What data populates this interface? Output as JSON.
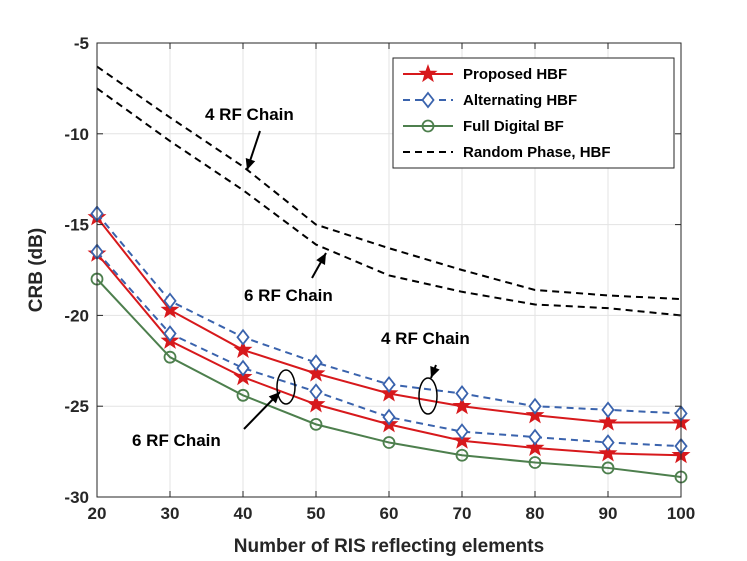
{
  "chart_data": {
    "type": "line",
    "title": "",
    "xlabel": "Number of RIS reflecting elements",
    "ylabel": "CRB (dB)",
    "xlim": [
      20,
      100
    ],
    "ylim": [
      -30,
      -5
    ],
    "xticks": [
      20,
      30,
      40,
      50,
      60,
      70,
      80,
      90,
      100
    ],
    "yticks": [
      -5,
      -10,
      -15,
      -20,
      -25,
      -30
    ],
    "grid": true,
    "legend_position": "top-right",
    "x": [
      20,
      30,
      40,
      50,
      60,
      70,
      80,
      90,
      100
    ],
    "series": [
      {
        "name": "Proposed HBF",
        "group": "4 RF Chain",
        "color": "#d7191c",
        "dash": "solid",
        "marker": "star",
        "legend": true,
        "values": [
          -14.6,
          -19.7,
          -21.9,
          -23.2,
          -24.3,
          -25.0,
          -25.5,
          -25.9,
          -25.9
        ]
      },
      {
        "name": "Proposed HBF",
        "group": "6 RF Chain",
        "color": "#d7191c",
        "dash": "solid",
        "marker": "star",
        "legend": false,
        "values": [
          -16.6,
          -21.4,
          -23.4,
          -24.9,
          -26.0,
          -26.9,
          -27.3,
          -27.6,
          -27.7
        ]
      },
      {
        "name": "Alternating HBF",
        "group": "4 RF Chain",
        "color": "#3a63ad",
        "dash": "dashed",
        "marker": "diamond",
        "legend": true,
        "values": [
          -14.4,
          -19.2,
          -21.2,
          -22.6,
          -23.8,
          -24.3,
          -25.0,
          -25.2,
          -25.4
        ]
      },
      {
        "name": "Alternating HBF",
        "group": "6 RF Chain",
        "color": "#3a63ad",
        "dash": "dashed",
        "marker": "diamond",
        "legend": false,
        "values": [
          -16.5,
          -21.0,
          -22.9,
          -24.2,
          -25.6,
          -26.4,
          -26.7,
          -27.0,
          -27.2
        ]
      },
      {
        "name": "Full Digital BF",
        "group": "",
        "color": "#4d7f4d",
        "dash": "solid",
        "marker": "circle",
        "legend": true,
        "values": [
          -18.0,
          -22.3,
          -24.4,
          -26.0,
          -27.0,
          -27.7,
          -28.1,
          -28.4,
          -28.9
        ]
      },
      {
        "name": "Random Phase, HBF",
        "group": "4 RF Chain",
        "color": "#000000",
        "dash": "dashed",
        "marker": "none",
        "legend": true,
        "values": [
          -6.3,
          -9.1,
          -11.8,
          -15.0,
          -16.3,
          -17.5,
          -18.6,
          -18.9,
          -19.1
        ]
      },
      {
        "name": "Random Phase, HBF",
        "group": "6 RF Chain",
        "color": "#000000",
        "dash": "dashed",
        "marker": "none",
        "legend": false,
        "values": [
          -7.5,
          -10.4,
          -13.1,
          -16.1,
          -17.8,
          -18.7,
          -19.4,
          -19.6,
          -20.0
        ]
      }
    ],
    "annotations": [
      {
        "text": "4 RF Chain",
        "target": "Random Phase, HBF"
      },
      {
        "text": "6 RF Chain",
        "target": "Random Phase, HBF"
      },
      {
        "text": "4 RF Chain",
        "target": "Proposed/Alternating HBF"
      },
      {
        "text": "6 RF Chain",
        "target": "Proposed/Alternating HBF"
      }
    ]
  }
}
